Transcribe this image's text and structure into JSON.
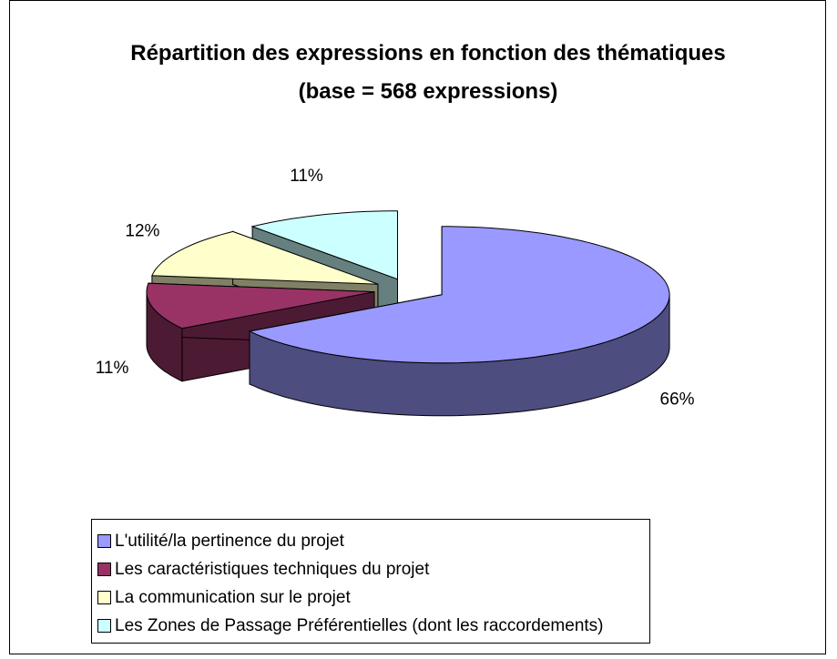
{
  "chart_data": {
    "type": "pie3d",
    "title": "Répartition des expressions en fonction des thématiques (base = 568 expressions)",
    "categories": [
      "L'utilité/la pertinence du projet",
      "Les caractéristiques techniques du projet",
      "La communication sur le projet",
      "Les Zones de Passage Préférentielles (dont les raccordements)"
    ],
    "values": [
      66,
      11,
      12,
      11
    ],
    "value_labels": [
      "66%",
      "11%",
      "12%",
      "11%"
    ],
    "colors": [
      "#9999ff",
      "#993366",
      "#ffffcc",
      "#ccffff"
    ],
    "legend": "bottom"
  }
}
